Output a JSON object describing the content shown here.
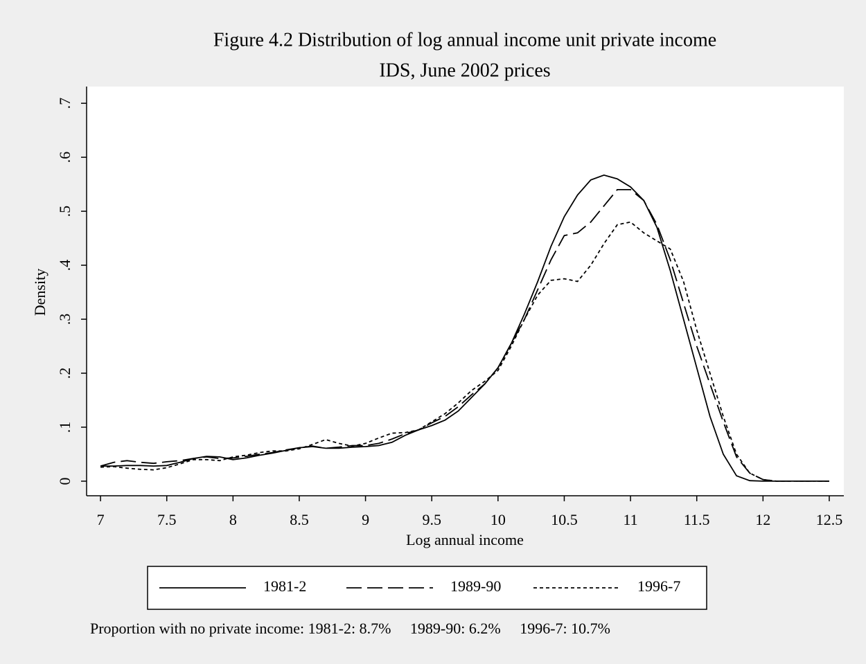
{
  "chart_data": {
    "type": "line",
    "title": "Figure 4.2 Distribution of log annual income unit private income",
    "subtitle": "IDS, June 2002 prices",
    "x_label": "Log annual income",
    "y_label": "Density",
    "note": "Proportion with no private income: 1981-2: 8.7%     1989-90: 6.2%     1996-7: 10.7%",
    "x": [
      7.0,
      7.1,
      7.2,
      7.3,
      7.4,
      7.5,
      7.6,
      7.7,
      7.8,
      7.9,
      8.0,
      8.1,
      8.2,
      8.3,
      8.4,
      8.5,
      8.6,
      8.7,
      8.8,
      8.9,
      9.0,
      9.1,
      9.2,
      9.3,
      9.4,
      9.5,
      9.6,
      9.7,
      9.8,
      9.9,
      10.0,
      10.1,
      10.2,
      10.3,
      10.4,
      10.5,
      10.6,
      10.7,
      10.8,
      10.9,
      11.0,
      11.1,
      11.2,
      11.3,
      11.4,
      11.5,
      11.6,
      11.7,
      11.8,
      11.9,
      12.0,
      12.1,
      12.2,
      12.3,
      12.4,
      12.5
    ],
    "series": [
      {
        "name": "1981-2",
        "color": "#000000",
        "style": "solid",
        "values": [
          0.028,
          0.028,
          0.029,
          0.029,
          0.028,
          0.029,
          0.035,
          0.042,
          0.046,
          0.045,
          0.04,
          0.043,
          0.048,
          0.052,
          0.057,
          0.062,
          0.064,
          0.061,
          0.061,
          0.063,
          0.064,
          0.066,
          0.072,
          0.085,
          0.095,
          0.103,
          0.113,
          0.13,
          0.155,
          0.18,
          0.21,
          0.255,
          0.31,
          0.37,
          0.435,
          0.49,
          0.53,
          0.558,
          0.567,
          0.56,
          0.545,
          0.52,
          0.47,
          0.39,
          0.3,
          0.21,
          0.12,
          0.05,
          0.01,
          0.001,
          0,
          0,
          0,
          0,
          0,
          0
        ]
      },
      {
        "name": "1989-90",
        "color": "#000000",
        "style": "dashed",
        "values": [
          0.028,
          0.035,
          0.038,
          0.035,
          0.033,
          0.036,
          0.038,
          0.042,
          0.045,
          0.042,
          0.043,
          0.046,
          0.05,
          0.053,
          0.058,
          0.062,
          0.065,
          0.061,
          0.063,
          0.066,
          0.066,
          0.07,
          0.078,
          0.088,
          0.095,
          0.108,
          0.12,
          0.138,
          0.16,
          0.18,
          0.21,
          0.255,
          0.3,
          0.355,
          0.41,
          0.455,
          0.46,
          0.48,
          0.51,
          0.54,
          0.54,
          0.52,
          0.475,
          0.41,
          0.33,
          0.25,
          0.18,
          0.11,
          0.045,
          0.015,
          0.003,
          0,
          0,
          0,
          0,
          0
        ]
      },
      {
        "name": "1996-7",
        "color": "#000000",
        "style": "dotted",
        "values": [
          0.026,
          0.027,
          0.024,
          0.022,
          0.021,
          0.025,
          0.032,
          0.04,
          0.04,
          0.038,
          0.045,
          0.048,
          0.053,
          0.056,
          0.056,
          0.06,
          0.068,
          0.077,
          0.07,
          0.065,
          0.07,
          0.08,
          0.089,
          0.09,
          0.095,
          0.11,
          0.125,
          0.145,
          0.168,
          0.185,
          0.205,
          0.25,
          0.3,
          0.345,
          0.372,
          0.375,
          0.37,
          0.4,
          0.44,
          0.475,
          0.48,
          0.46,
          0.445,
          0.43,
          0.37,
          0.28,
          0.2,
          0.12,
          0.05,
          0.015,
          0.003,
          0,
          0,
          0,
          0,
          0
        ]
      }
    ],
    "xlim": [
      6.895,
      12.61
    ],
    "ylim": [
      -0.027,
      0.731
    ],
    "xticks": [
      7,
      7.5,
      8,
      8.5,
      9,
      9.5,
      10,
      10.5,
      11,
      11.5,
      12,
      12.5
    ],
    "yticks": [
      0,
      {
        "value": 0.1,
        "label": ".1"
      },
      {
        "value": 0.2,
        "label": ".2"
      },
      {
        "value": 0.3,
        "label": ".3"
      },
      {
        "value": 0.4,
        "label": ".4"
      },
      {
        "value": 0.5,
        "label": ".5"
      },
      {
        "value": 0.6,
        "label": ".6"
      },
      {
        "value": 0.7,
        "label": ".7"
      }
    ],
    "grid": false,
    "legend": "bottom"
  }
}
